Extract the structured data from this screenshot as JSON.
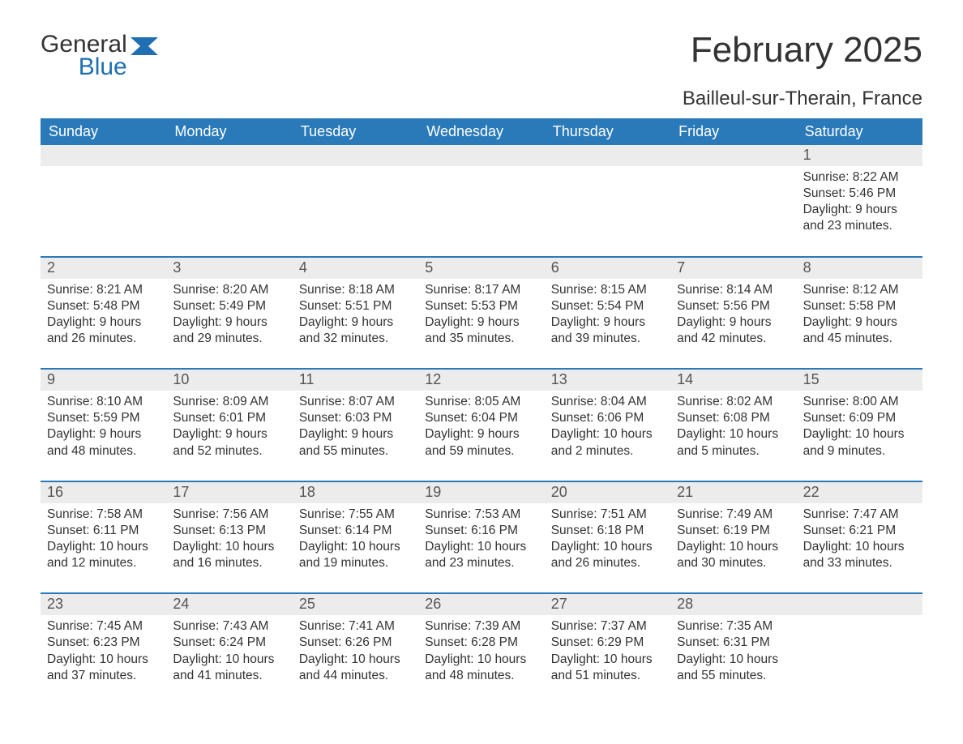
{
  "brand": {
    "line1": "General",
    "line2": "Blue"
  },
  "title": "February 2025",
  "subtitle": "Bailleul-sur-Therain, France",
  "colors": {
    "header_bg": "#2a7ab9",
    "header_text": "#ffffff",
    "daynum_bg": "#ececec",
    "border": "#2a7ab9",
    "brand_blue": "#1f6fb2",
    "body_text": "#333333"
  },
  "weekdays": [
    "Sunday",
    "Monday",
    "Tuesday",
    "Wednesday",
    "Thursday",
    "Friday",
    "Saturday"
  ],
  "weeks": [
    [
      {
        "num": "",
        "sunrise": "",
        "sunset": "",
        "daylight": ""
      },
      {
        "num": "",
        "sunrise": "",
        "sunset": "",
        "daylight": ""
      },
      {
        "num": "",
        "sunrise": "",
        "sunset": "",
        "daylight": ""
      },
      {
        "num": "",
        "sunrise": "",
        "sunset": "",
        "daylight": ""
      },
      {
        "num": "",
        "sunrise": "",
        "sunset": "",
        "daylight": ""
      },
      {
        "num": "",
        "sunrise": "",
        "sunset": "",
        "daylight": ""
      },
      {
        "num": "1",
        "sunrise": "Sunrise: 8:22 AM",
        "sunset": "Sunset: 5:46 PM",
        "daylight": "Daylight: 9 hours and 23 minutes."
      }
    ],
    [
      {
        "num": "2",
        "sunrise": "Sunrise: 8:21 AM",
        "sunset": "Sunset: 5:48 PM",
        "daylight": "Daylight: 9 hours and 26 minutes."
      },
      {
        "num": "3",
        "sunrise": "Sunrise: 8:20 AM",
        "sunset": "Sunset: 5:49 PM",
        "daylight": "Daylight: 9 hours and 29 minutes."
      },
      {
        "num": "4",
        "sunrise": "Sunrise: 8:18 AM",
        "sunset": "Sunset: 5:51 PM",
        "daylight": "Daylight: 9 hours and 32 minutes."
      },
      {
        "num": "5",
        "sunrise": "Sunrise: 8:17 AM",
        "sunset": "Sunset: 5:53 PM",
        "daylight": "Daylight: 9 hours and 35 minutes."
      },
      {
        "num": "6",
        "sunrise": "Sunrise: 8:15 AM",
        "sunset": "Sunset: 5:54 PM",
        "daylight": "Daylight: 9 hours and 39 minutes."
      },
      {
        "num": "7",
        "sunrise": "Sunrise: 8:14 AM",
        "sunset": "Sunset: 5:56 PM",
        "daylight": "Daylight: 9 hours and 42 minutes."
      },
      {
        "num": "8",
        "sunrise": "Sunrise: 8:12 AM",
        "sunset": "Sunset: 5:58 PM",
        "daylight": "Daylight: 9 hours and 45 minutes."
      }
    ],
    [
      {
        "num": "9",
        "sunrise": "Sunrise: 8:10 AM",
        "sunset": "Sunset: 5:59 PM",
        "daylight": "Daylight: 9 hours and 48 minutes."
      },
      {
        "num": "10",
        "sunrise": "Sunrise: 8:09 AM",
        "sunset": "Sunset: 6:01 PM",
        "daylight": "Daylight: 9 hours and 52 minutes."
      },
      {
        "num": "11",
        "sunrise": "Sunrise: 8:07 AM",
        "sunset": "Sunset: 6:03 PM",
        "daylight": "Daylight: 9 hours and 55 minutes."
      },
      {
        "num": "12",
        "sunrise": "Sunrise: 8:05 AM",
        "sunset": "Sunset: 6:04 PM",
        "daylight": "Daylight: 9 hours and 59 minutes."
      },
      {
        "num": "13",
        "sunrise": "Sunrise: 8:04 AM",
        "sunset": "Sunset: 6:06 PM",
        "daylight": "Daylight: 10 hours and 2 minutes."
      },
      {
        "num": "14",
        "sunrise": "Sunrise: 8:02 AM",
        "sunset": "Sunset: 6:08 PM",
        "daylight": "Daylight: 10 hours and 5 minutes."
      },
      {
        "num": "15",
        "sunrise": "Sunrise: 8:00 AM",
        "sunset": "Sunset: 6:09 PM",
        "daylight": "Daylight: 10 hours and 9 minutes."
      }
    ],
    [
      {
        "num": "16",
        "sunrise": "Sunrise: 7:58 AM",
        "sunset": "Sunset: 6:11 PM",
        "daylight": "Daylight: 10 hours and 12 minutes."
      },
      {
        "num": "17",
        "sunrise": "Sunrise: 7:56 AM",
        "sunset": "Sunset: 6:13 PM",
        "daylight": "Daylight: 10 hours and 16 minutes."
      },
      {
        "num": "18",
        "sunrise": "Sunrise: 7:55 AM",
        "sunset": "Sunset: 6:14 PM",
        "daylight": "Daylight: 10 hours and 19 minutes."
      },
      {
        "num": "19",
        "sunrise": "Sunrise: 7:53 AM",
        "sunset": "Sunset: 6:16 PM",
        "daylight": "Daylight: 10 hours and 23 minutes."
      },
      {
        "num": "20",
        "sunrise": "Sunrise: 7:51 AM",
        "sunset": "Sunset: 6:18 PM",
        "daylight": "Daylight: 10 hours and 26 minutes."
      },
      {
        "num": "21",
        "sunrise": "Sunrise: 7:49 AM",
        "sunset": "Sunset: 6:19 PM",
        "daylight": "Daylight: 10 hours and 30 minutes."
      },
      {
        "num": "22",
        "sunrise": "Sunrise: 7:47 AM",
        "sunset": "Sunset: 6:21 PM",
        "daylight": "Daylight: 10 hours and 33 minutes."
      }
    ],
    [
      {
        "num": "23",
        "sunrise": "Sunrise: 7:45 AM",
        "sunset": "Sunset: 6:23 PM",
        "daylight": "Daylight: 10 hours and 37 minutes."
      },
      {
        "num": "24",
        "sunrise": "Sunrise: 7:43 AM",
        "sunset": "Sunset: 6:24 PM",
        "daylight": "Daylight: 10 hours and 41 minutes."
      },
      {
        "num": "25",
        "sunrise": "Sunrise: 7:41 AM",
        "sunset": "Sunset: 6:26 PM",
        "daylight": "Daylight: 10 hours and 44 minutes."
      },
      {
        "num": "26",
        "sunrise": "Sunrise: 7:39 AM",
        "sunset": "Sunset: 6:28 PM",
        "daylight": "Daylight: 10 hours and 48 minutes."
      },
      {
        "num": "27",
        "sunrise": "Sunrise: 7:37 AM",
        "sunset": "Sunset: 6:29 PM",
        "daylight": "Daylight: 10 hours and 51 minutes."
      },
      {
        "num": "28",
        "sunrise": "Sunrise: 7:35 AM",
        "sunset": "Sunset: 6:31 PM",
        "daylight": "Daylight: 10 hours and 55 minutes."
      },
      {
        "num": "",
        "sunrise": "",
        "sunset": "",
        "daylight": ""
      }
    ]
  ]
}
